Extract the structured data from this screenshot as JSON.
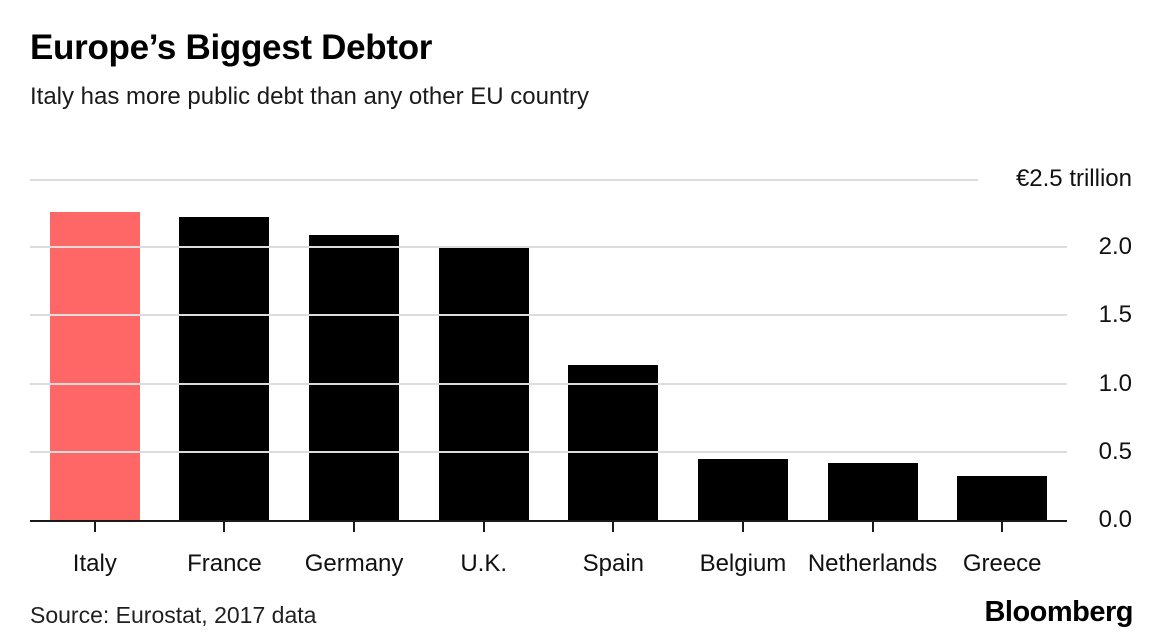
{
  "chart_data": {
    "type": "bar",
    "title": "Europe’s Biggest Debtor",
    "subtitle": "Italy has more public debt than any other EU country",
    "categories": [
      "Italy",
      "France",
      "Germany",
      "U.K.",
      "Spain",
      "Belgium",
      "Netherlands",
      "Greece"
    ],
    "values": [
      2.26,
      2.22,
      2.09,
      2.01,
      1.14,
      0.45,
      0.42,
      0.32
    ],
    "unit": "€ trillion",
    "ylim": [
      0,
      2.5
    ],
    "yticks": [
      {
        "value": 2.5,
        "label": "€2.5 trillion"
      },
      {
        "value": 2.0,
        "label": "2.0"
      },
      {
        "value": 1.5,
        "label": "1.5"
      },
      {
        "value": 1.0,
        "label": "1.0"
      },
      {
        "value": 0.5,
        "label": "0.5"
      },
      {
        "value": 0.0,
        "label": "0.0"
      }
    ],
    "grid": true,
    "legend": "none",
    "axis_label_position": "right",
    "highlight_category": "Italy",
    "colors": {
      "bar": "#000000",
      "highlight": "#ff6666",
      "gridline": "#dcdcdc",
      "axis": "#1a1a1a"
    }
  },
  "footer": {
    "source_label": "Source: Eurostat, 2017 data",
    "brand": "Bloomberg"
  }
}
